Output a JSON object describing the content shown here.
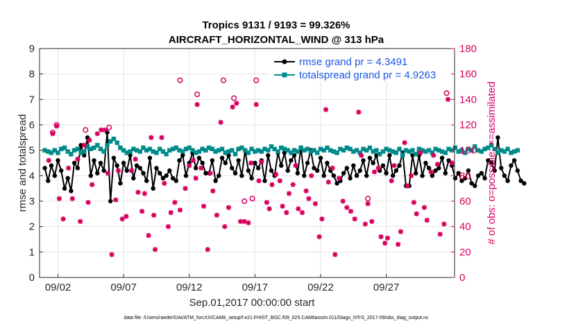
{
  "chart_data": {
    "type": "line",
    "title_line1": "Tropics 9131 / 9193 = 99.326%",
    "title_line2": "AIRCRAFT_HORIZONTAL_WIND @ 313 hPa",
    "xlabel": "Sep.01,2017 00:00:00 start",
    "ylabel_left": "rmse and totalspread",
    "ylabel_right": "# of obs: o=possible; ×=assimilated",
    "footer": "data file: /Users/raeder/DAI/ATM_forcXX/CAM6_setup/f.e21.FHIST_BGC.f09_025.CAM6assim.011/Diags_NTrS_2017-09/obs_diag_output.nc",
    "xlim": [
      0.6,
      32.2
    ],
    "ylim_left": [
      0,
      9
    ],
    "ylim_right": [
      0,
      180
    ],
    "x_ticks": [
      {
        "x": 2,
        "label": "09/02"
      },
      {
        "x": 7,
        "label": "09/07"
      },
      {
        "x": 12,
        "label": "09/12"
      },
      {
        "x": 17,
        "label": "09/17"
      },
      {
        "x": 22,
        "label": "09/22"
      },
      {
        "x": 27,
        "label": "09/27"
      }
    ],
    "y_ticks_left": [
      0,
      1,
      2,
      3,
      4,
      5,
      6,
      7,
      8,
      9
    ],
    "y_ticks_right": [
      0,
      20,
      40,
      60,
      80,
      100,
      120,
      140,
      160,
      180
    ],
    "x_step_days": 0.25,
    "x_start_day": 1.0,
    "series": [
      {
        "name": "rmse",
        "legend": "rmse grand pr = 4.3491",
        "color": "#000000",
        "values": [
          4.3,
          3.8,
          4.4,
          4.0,
          4.6,
          4.2,
          3.5,
          3.9,
          3.4,
          4.5,
          4.3,
          5.2,
          4.8,
          5.5,
          4.0,
          4.6,
          4.1,
          4.5,
          4.2,
          5.7,
          3.0,
          4.7,
          4.4,
          3.7,
          4.5,
          4.2,
          4.8,
          3.9,
          4.4,
          4.3,
          4.1,
          3.8,
          4.7,
          3.5,
          4.3,
          4.1,
          3.9,
          4.0,
          4.2,
          3.9,
          3.8,
          4.6,
          4.8,
          4.0,
          4.5,
          4.9,
          4.3,
          4.7,
          4.5,
          4.1,
          4.1,
          4.6,
          3.8,
          4.0,
          4.7,
          4.5,
          4.8,
          4.3,
          4.1,
          4.6,
          4.0,
          5.0,
          4.2,
          3.9,
          4.5,
          4.3,
          4.6,
          3.8,
          4.8,
          4.2,
          4.0,
          4.9,
          4.4,
          4.9,
          4.2,
          4.6,
          4.8,
          4.1,
          5.1,
          4.0,
          4.5,
          5.0,
          4.3,
          4.2,
          4.7,
          4.0,
          4.5,
          4.2,
          4.0,
          3.7,
          3.8,
          4.1,
          4.3,
          3.9,
          4.4,
          4.0,
          4.2,
          4.6,
          4.0,
          4.7,
          4.5,
          4.8,
          4.2,
          4.4,
          4.1,
          4.8,
          4.0,
          4.2,
          4.4,
          4.9,
          3.6,
          3.6,
          4.8,
          4.1,
          4.8,
          4.0,
          4.5,
          4.3,
          4.0,
          4.2,
          4.3,
          4.7,
          4.1,
          4.6,
          4.4,
          3.9,
          4.1,
          3.8,
          3.9,
          4.2,
          3.7,
          3.6,
          4.0,
          4.1,
          3.9,
          4.6,
          4.5,
          4.2,
          5.5,
          4.3,
          4.0,
          3.8,
          4.4,
          4.6,
          4.2,
          3.8,
          3.7
        ]
      },
      {
        "name": "totalspread",
        "legend": "totalspread grand pr = 4.9263",
        "color": "#008b8b",
        "values": [
          5.0,
          4.95,
          4.9,
          5.0,
          4.9,
          5.05,
          5.1,
          4.95,
          4.85,
          5.0,
          5.05,
          4.9,
          4.95,
          5.15,
          5.05,
          5.1,
          5.2,
          5.05,
          4.95,
          5.2,
          5.35,
          5.45,
          5.3,
          5.1,
          5.0,
          4.9,
          4.95,
          5.05,
          5.0,
          4.95,
          5.1,
          5.0,
          5.05,
          4.95,
          4.9,
          5.05,
          4.95,
          4.85,
          5.0,
          5.05,
          5.1,
          5.0,
          4.95,
          5.05,
          5.1,
          5.0,
          4.9,
          4.95,
          5.05,
          5.0,
          5.1,
          5.05,
          4.95,
          5.0,
          5.05,
          4.9,
          4.95,
          5.0,
          4.85,
          5.05,
          5.1,
          5.0,
          4.9,
          5.05,
          4.95,
          5.0,
          4.95,
          5.05,
          5.0,
          5.15,
          5.05,
          4.95,
          5.1,
          5.05,
          5.0,
          4.9,
          5.0,
          4.95,
          5.1,
          5.0,
          5.05,
          4.95,
          5.0,
          4.9,
          5.05,
          5.0,
          5.1,
          5.0,
          4.95,
          4.9,
          5.05,
          5.0,
          5.1,
          5.05,
          4.95,
          5.0,
          4.9,
          5.05,
          5.0,
          5.1,
          4.95,
          5.0,
          4.85,
          4.95,
          5.05,
          5.0,
          4.95,
          4.9,
          5.05,
          4.8,
          5.0,
          4.95,
          5.0,
          4.85,
          5.05,
          5.0,
          4.95,
          5.0,
          4.9,
          5.05,
          5.0,
          4.95,
          4.9,
          5.05,
          5.0,
          5.1,
          4.95,
          5.0,
          4.9,
          5.05,
          5.0,
          5.15,
          5.0,
          4.95,
          5.05,
          5.1,
          5.2,
          5.05,
          4.9,
          5.0,
          4.95,
          5.05,
          4.9,
          4.95,
          5.0
        ]
      }
    ],
    "obs_possible": [
      {
        "x": 1.6,
        "y": 114
      },
      {
        "x": 1.9,
        "y": 120
      },
      {
        "x": 4.1,
        "y": 116
      },
      {
        "x": 5.9,
        "y": 118
      },
      {
        "x": 11.3,
        "y": 155
      },
      {
        "x": 12.6,
        "y": 144
      },
      {
        "x": 14.6,
        "y": 155
      },
      {
        "x": 15.4,
        "y": 141
      },
      {
        "x": 16.2,
        "y": 60
      },
      {
        "x": 16.8,
        "y": 62
      },
      {
        "x": 17.1,
        "y": 155
      },
      {
        "x": 25.6,
        "y": 62
      },
      {
        "x": 31.6,
        "y": 145
      }
    ],
    "obs_assimilated": [
      {
        "x": 1.3,
        "y": 92
      },
      {
        "x": 1.6,
        "y": 113
      },
      {
        "x": 1.9,
        "y": 119
      },
      {
        "x": 2.1,
        "y": 62
      },
      {
        "x": 2.4,
        "y": 46
      },
      {
        "x": 2.8,
        "y": 86
      },
      {
        "x": 3.1,
        "y": 62
      },
      {
        "x": 3.5,
        "y": 93
      },
      {
        "x": 3.7,
        "y": 44
      },
      {
        "x": 4.0,
        "y": 104
      },
      {
        "x": 4.3,
        "y": 59
      },
      {
        "x": 4.4,
        "y": 108
      },
      {
        "x": 4.6,
        "y": 73
      },
      {
        "x": 5.0,
        "y": 113
      },
      {
        "x": 5.3,
        "y": 116
      },
      {
        "x": 5.6,
        "y": 116
      },
      {
        "x": 5.8,
        "y": 82
      },
      {
        "x": 6.1,
        "y": 18
      },
      {
        "x": 6.4,
        "y": 61
      },
      {
        "x": 6.6,
        "y": 84
      },
      {
        "x": 6.9,
        "y": 46
      },
      {
        "x": 7.2,
        "y": 48
      },
      {
        "x": 7.6,
        "y": 84
      },
      {
        "x": 7.9,
        "y": 93
      },
      {
        "x": 8.1,
        "y": 67
      },
      {
        "x": 8.4,
        "y": 52
      },
      {
        "x": 8.6,
        "y": 66
      },
      {
        "x": 8.9,
        "y": 33
      },
      {
        "x": 9.1,
        "y": 110
      },
      {
        "x": 9.3,
        "y": 49
      },
      {
        "x": 9.4,
        "y": 22
      },
      {
        "x": 9.9,
        "y": 110
      },
      {
        "x": 10.1,
        "y": 74
      },
      {
        "x": 10.4,
        "y": 40
      },
      {
        "x": 10.6,
        "y": 51
      },
      {
        "x": 10.9,
        "y": 59
      },
      {
        "x": 11.3,
        "y": 53
      },
      {
        "x": 11.7,
        "y": 70
      },
      {
        "x": 12.0,
        "y": 88
      },
      {
        "x": 12.3,
        "y": 92
      },
      {
        "x": 12.5,
        "y": 78
      },
      {
        "x": 12.6,
        "y": 136
      },
      {
        "x": 12.9,
        "y": 86
      },
      {
        "x": 13.1,
        "y": 56
      },
      {
        "x": 13.4,
        "y": 22
      },
      {
        "x": 13.6,
        "y": 82
      },
      {
        "x": 13.8,
        "y": 68
      },
      {
        "x": 14.1,
        "y": 49
      },
      {
        "x": 14.4,
        "y": 122
      },
      {
        "x": 14.7,
        "y": 40
      },
      {
        "x": 15.0,
        "y": 55
      },
      {
        "x": 15.3,
        "y": 134
      },
      {
        "x": 15.6,
        "y": 137
      },
      {
        "x": 15.9,
        "y": 44
      },
      {
        "x": 16.2,
        "y": 44
      },
      {
        "x": 16.5,
        "y": 43
      },
      {
        "x": 16.7,
        "y": 90
      },
      {
        "x": 17.1,
        "y": 136
      },
      {
        "x": 17.3,
        "y": 76
      },
      {
        "x": 17.5,
        "y": 91
      },
      {
        "x": 17.9,
        "y": 59
      },
      {
        "x": 18.1,
        "y": 54
      },
      {
        "x": 18.3,
        "y": 73
      },
      {
        "x": 18.6,
        "y": 81
      },
      {
        "x": 18.9,
        "y": 76
      },
      {
        "x": 19.1,
        "y": 56
      },
      {
        "x": 19.4,
        "y": 51
      },
      {
        "x": 19.6,
        "y": 66
      },
      {
        "x": 19.9,
        "y": 73
      },
      {
        "x": 20.1,
        "y": 88
      },
      {
        "x": 20.3,
        "y": 54
      },
      {
        "x": 20.6,
        "y": 51
      },
      {
        "x": 20.9,
        "y": 68
      },
      {
        "x": 21.1,
        "y": 62
      },
      {
        "x": 21.3,
        "y": 80
      },
      {
        "x": 21.6,
        "y": 58
      },
      {
        "x": 21.9,
        "y": 32
      },
      {
        "x": 22.1,
        "y": 46
      },
      {
        "x": 22.4,
        "y": 132
      },
      {
        "x": 22.6,
        "y": 75
      },
      {
        "x": 22.9,
        "y": 86
      },
      {
        "x": 23.1,
        "y": 18
      },
      {
        "x": 23.4,
        "y": 78
      },
      {
        "x": 23.7,
        "y": 60
      },
      {
        "x": 24.0,
        "y": 55
      },
      {
        "x": 24.3,
        "y": 52
      },
      {
        "x": 24.6,
        "y": 46
      },
      {
        "x": 24.9,
        "y": 130
      },
      {
        "x": 25.1,
        "y": 96
      },
      {
        "x": 25.4,
        "y": 42
      },
      {
        "x": 25.6,
        "y": 58
      },
      {
        "x": 25.9,
        "y": 44
      },
      {
        "x": 26.1,
        "y": 83
      },
      {
        "x": 26.4,
        "y": 86
      },
      {
        "x": 26.6,
        "y": 32
      },
      {
        "x": 26.9,
        "y": 27
      },
      {
        "x": 27.1,
        "y": 31
      },
      {
        "x": 27.4,
        "y": 76
      },
      {
        "x": 27.6,
        "y": 88
      },
      {
        "x": 27.9,
        "y": 26
      },
      {
        "x": 28.1,
        "y": 36
      },
      {
        "x": 28.4,
        "y": 106
      },
      {
        "x": 28.6,
        "y": 72
      },
      {
        "x": 28.9,
        "y": 80
      },
      {
        "x": 29.1,
        "y": 59
      },
      {
        "x": 29.3,
        "y": 50
      },
      {
        "x": 29.6,
        "y": 98
      },
      {
        "x": 29.9,
        "y": 55
      },
      {
        "x": 30.1,
        "y": 45
      },
      {
        "x": 30.4,
        "y": 83
      },
      {
        "x": 30.6,
        "y": 96
      },
      {
        "x": 30.9,
        "y": 89
      },
      {
        "x": 31.1,
        "y": 34
      },
      {
        "x": 31.4,
        "y": 42
      },
      {
        "x": 31.7,
        "y": 140
      },
      {
        "x": 32.0,
        "y": 90
      }
    ]
  }
}
